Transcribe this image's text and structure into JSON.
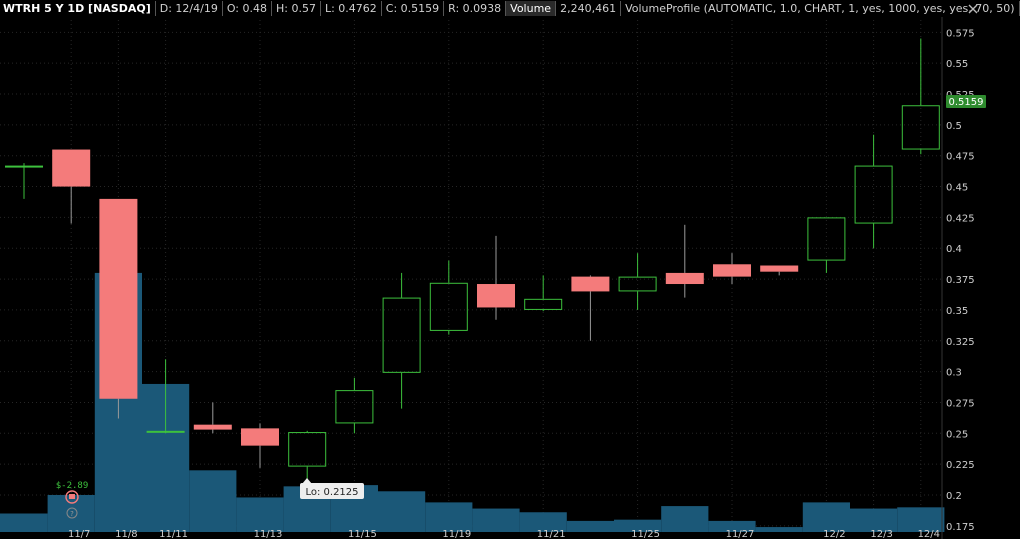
{
  "header": {
    "symbol": "WTRH 5 Y 1D [NASDAQ]",
    "date": "D: 12/4/19",
    "open": "O: 0.48",
    "high": "H: 0.57",
    "low": "L: 0.4762",
    "close": "C: 0.5159",
    "range": "R: 0.0938",
    "volume_label": "Volume",
    "volume_value": "2,240,461",
    "study": "VolumeProfile (AUTOMATIC, 1.0, CHART, 1, yes, 1000, yes, yes, 70, 50)"
  },
  "price_tag": "0.5159",
  "low_label": "Lo: 0.2125",
  "event_label": "$-2.89",
  "icons": {
    "close": "close-icon",
    "earnings": "earnings-icon",
    "event": "event-icon"
  },
  "colors": {
    "up": "#3dc13d",
    "down": "#f47b7b",
    "volume": "#1b5878",
    "grid": "#262626",
    "tag_bg": "#2e8b2e"
  },
  "chart_data": {
    "type": "candlestick",
    "ylim": [
      0.17,
      0.585
    ],
    "y_ticks": [
      "0.575",
      "0.55",
      "0.525",
      "0.5",
      "0.475",
      "0.45",
      "0.425",
      "0.4",
      "0.375",
      "0.35",
      "0.325",
      "0.3",
      "0.275",
      "0.25",
      "0.225",
      "0.2",
      "0.175"
    ],
    "x_ticks": [
      "11/7",
      "11/8",
      "11/11",
      "11/13",
      "11/15",
      "11/19",
      "11/21",
      "11/25",
      "11/27",
      "12/2",
      "12/3",
      "12/4"
    ],
    "candles": [
      {
        "o": 0.467,
        "h": 0.469,
        "l": 0.44,
        "c": 0.467
      },
      {
        "o": 0.48,
        "h": 0.48,
        "l": 0.42,
        "c": 0.45
      },
      {
        "o": 0.44,
        "h": 0.44,
        "l": 0.262,
        "c": 0.278
      },
      {
        "o": 0.252,
        "h": 0.31,
        "l": 0.25,
        "c": 0.252
      },
      {
        "o": 0.257,
        "h": 0.275,
        "l": 0.25,
        "c": 0.253
      },
      {
        "o": 0.254,
        "h": 0.258,
        "l": 0.222,
        "c": 0.24
      },
      {
        "o": 0.223,
        "h": 0.252,
        "l": 0.2125,
        "c": 0.251
      },
      {
        "o": 0.258,
        "h": 0.295,
        "l": 0.25,
        "c": 0.285
      },
      {
        "o": 0.299,
        "h": 0.38,
        "l": 0.27,
        "c": 0.36
      },
      {
        "o": 0.333,
        "h": 0.39,
        "l": 0.33,
        "c": 0.372
      },
      {
        "o": 0.371,
        "h": 0.41,
        "l": 0.342,
        "c": 0.352
      },
      {
        "o": 0.35,
        "h": 0.378,
        "l": 0.349,
        "c": 0.359
      },
      {
        "o": 0.377,
        "h": 0.378,
        "l": 0.325,
        "c": 0.365
      },
      {
        "o": 0.365,
        "h": 0.396,
        "l": 0.35,
        "c": 0.377
      },
      {
        "o": 0.38,
        "h": 0.419,
        "l": 0.36,
        "c": 0.371
      },
      {
        "o": 0.387,
        "h": 0.396,
        "l": 0.371,
        "c": 0.377
      },
      {
        "o": 0.386,
        "h": 0.386,
        "l": 0.378,
        "c": 0.381
      },
      {
        "o": 0.39,
        "h": 0.425,
        "l": 0.38,
        "c": 0.425
      },
      {
        "o": 0.42,
        "h": 0.492,
        "l": 0.4,
        "c": 0.467
      },
      {
        "o": 0.48,
        "h": 0.57,
        "l": 0.4762,
        "c": 0.5159
      }
    ],
    "volume_profile": [
      0.185,
      0.2,
      0.38,
      0.29,
      0.22,
      0.198,
      0.207,
      0.208,
      0.203,
      0.194,
      0.189,
      0.186,
      0.179,
      0.18,
      0.191,
      0.179,
      0.174,
      0.194,
      0.189,
      0.19
    ],
    "last_price": 0.5159
  }
}
